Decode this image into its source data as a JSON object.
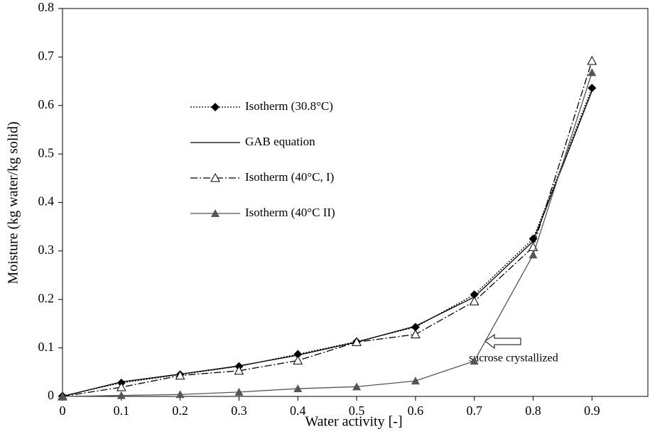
{
  "chart_data": {
    "type": "line",
    "x_label": "Water activity [-]",
    "y_label": "Moisture (kg water/kg solid)",
    "annotation": "sucrose crystallized",
    "x": [
      0,
      0.1,
      0.2,
      0.3,
      0.4,
      0.5,
      0.6,
      0.7,
      0.8,
      0.9
    ],
    "series": [
      {
        "name": "Isotherm (30.8°C)",
        "color": "#000000",
        "marker": "diamond",
        "dash": "2,2",
        "values": [
          0.001,
          0.028,
          0.045,
          0.062,
          0.087,
          0.113,
          0.143,
          0.21,
          0.325,
          0.636
        ]
      },
      {
        "name": "GAB equation",
        "color": "#000000",
        "marker": "none",
        "dash": "none",
        "values": [
          0,
          0.03,
          0.046,
          0.063,
          0.085,
          0.112,
          0.145,
          0.205,
          0.32,
          0.63
        ]
      },
      {
        "name": "Isotherm (40°C,  I)",
        "color": "#000000",
        "marker": "triangle-open",
        "dash": "10,3,2,3",
        "values": [
          0,
          0.019,
          0.043,
          0.053,
          0.074,
          0.112,
          0.128,
          0.196,
          0.308,
          0.692
        ]
      },
      {
        "name": "Isotherm (40°C II)",
        "color": "#555555",
        "marker": "triangle",
        "dash": "none",
        "values": [
          0,
          0.002,
          0.004,
          0.009,
          0.016,
          0.02,
          0.032,
          0.073,
          0.292,
          0.668
        ]
      }
    ],
    "xlim": [
      0,
      0.995
    ],
    "xticks": [
      0,
      0.1,
      0.2,
      0.3,
      0.4,
      0.5,
      0.6,
      0.7,
      0.8,
      0.9
    ],
    "ylim": [
      0,
      0.8
    ],
    "yticks": [
      0,
      0.1,
      0.2,
      0.3,
      0.4,
      0.5,
      0.6,
      0.7,
      0.8
    ]
  }
}
